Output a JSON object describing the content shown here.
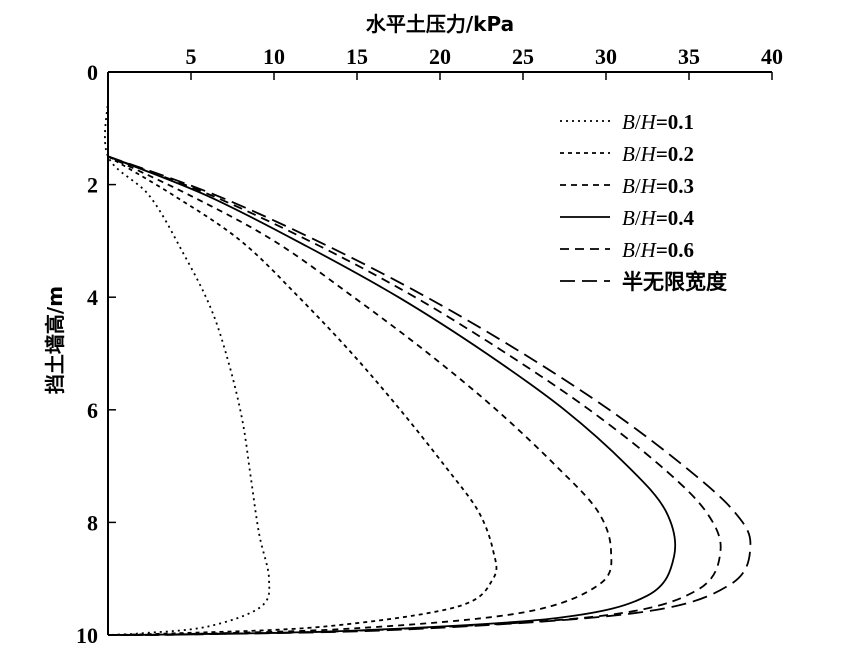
{
  "chart_data": {
    "type": "line",
    "title": "",
    "xlabel": "水平土压力/kPa",
    "ylabel": "挡土墙高/m",
    "xlim": [
      0,
      40
    ],
    "ylim": [
      0,
      10
    ],
    "y_inverted": true,
    "x_axis_position": "top",
    "x_ticks": [
      "5",
      "10",
      "15",
      "20",
      "25",
      "30",
      "35",
      "40"
    ],
    "y_ticks": [
      "0",
      "2",
      "4",
      "6",
      "8",
      "10"
    ],
    "grid": false,
    "legend_position": "top-right",
    "series": [
      {
        "name": "B/H=0.1",
        "legend": {
          "italic1": "B",
          "sep": "/",
          "italic2": "H",
          "value": "=0.1"
        },
        "dash": "2,4",
        "points": [
          [
            0,
            0.5
          ],
          [
            0,
            1.5
          ],
          [
            2.5,
            2.2
          ],
          [
            4.5,
            3.2
          ],
          [
            6.2,
            4.2
          ],
          [
            7.3,
            5.2
          ],
          [
            8.1,
            6.2
          ],
          [
            8.6,
            7.2
          ],
          [
            9.1,
            8.2
          ],
          [
            9.7,
            9.0
          ],
          [
            9.2,
            9.5
          ],
          [
            6,
            9.85
          ],
          [
            2,
            9.97
          ],
          [
            0,
            10
          ]
        ]
      },
      {
        "name": "B/H=0.2",
        "legend": {
          "italic1": "B",
          "sep": "/",
          "italic2": "H",
          "value": "=0.2"
        },
        "dash": "4,4",
        "points": [
          [
            0,
            1.5
          ],
          [
            4,
            2.2
          ],
          [
            8,
            3.0
          ],
          [
            11.5,
            4.0
          ],
          [
            14.7,
            5.0
          ],
          [
            17.6,
            6.0
          ],
          [
            20.3,
            7.0
          ],
          [
            22.3,
            7.8
          ],
          [
            23.2,
            8.5
          ],
          [
            23.2,
            9.0
          ],
          [
            21,
            9.5
          ],
          [
            13,
            9.85
          ],
          [
            4,
            9.97
          ],
          [
            0,
            10
          ]
        ]
      },
      {
        "name": "B/H=0.3",
        "legend": {
          "italic1": "B",
          "sep": "/",
          "italic2": "H",
          "value": "=0.3"
        },
        "dash": "6,5",
        "points": [
          [
            0,
            1.5
          ],
          [
            5,
            2.2
          ],
          [
            10,
            3.0
          ],
          [
            14.8,
            4.0
          ],
          [
            19.3,
            5.0
          ],
          [
            23.4,
            6.0
          ],
          [
            27,
            7.0
          ],
          [
            29.5,
            7.8
          ],
          [
            30.3,
            8.5
          ],
          [
            29.6,
            9.1
          ],
          [
            25,
            9.6
          ],
          [
            15,
            9.88
          ],
          [
            5,
            9.98
          ],
          [
            0,
            10
          ]
        ]
      },
      {
        "name": "B/H=0.4",
        "legend": {
          "italic1": "B",
          "sep": "/",
          "italic2": "H",
          "value": "=0.4"
        },
        "dash": "",
        "points": [
          [
            0,
            1.5
          ],
          [
            6,
            2.2
          ],
          [
            12,
            3.1
          ],
          [
            17.5,
            4.0
          ],
          [
            22.8,
            5.0
          ],
          [
            27.5,
            6.0
          ],
          [
            31.3,
            7.0
          ],
          [
            33.6,
            7.8
          ],
          [
            34.1,
            8.6
          ],
          [
            32.5,
            9.3
          ],
          [
            27,
            9.7
          ],
          [
            15,
            9.92
          ],
          [
            4,
            9.99
          ],
          [
            0,
            10
          ]
        ]
      },
      {
        "name": "B/H=0.6",
        "legend": {
          "italic1": "B",
          "sep": "/",
          "italic2": "H",
          "value": "=0.6"
        },
        "dash": "9,6",
        "points": [
          [
            0,
            1.5
          ],
          [
            6.3,
            2.2
          ],
          [
            12.8,
            3.1
          ],
          [
            18.5,
            4.0
          ],
          [
            24,
            5.0
          ],
          [
            29,
            6.0
          ],
          [
            33.3,
            7.0
          ],
          [
            36,
            7.8
          ],
          [
            36.9,
            8.5
          ],
          [
            35.5,
            9.2
          ],
          [
            30,
            9.65
          ],
          [
            17,
            9.9
          ],
          [
            5,
            9.99
          ],
          [
            0,
            10
          ]
        ]
      },
      {
        "name": "半无限宽度",
        "legend": {
          "text": "半无限宽度"
        },
        "dash": "15,7",
        "points": [
          [
            0,
            1.5
          ],
          [
            6.6,
            2.2
          ],
          [
            13.3,
            3.1
          ],
          [
            19.2,
            4.0
          ],
          [
            25,
            5.0
          ],
          [
            30.2,
            6.0
          ],
          [
            34.7,
            7.0
          ],
          [
            37.7,
            7.8
          ],
          [
            38.7,
            8.4
          ],
          [
            37.5,
            9.1
          ],
          [
            32,
            9.6
          ],
          [
            18,
            9.9
          ],
          [
            5,
            9.99
          ],
          [
            0,
            10
          ]
        ]
      }
    ]
  }
}
